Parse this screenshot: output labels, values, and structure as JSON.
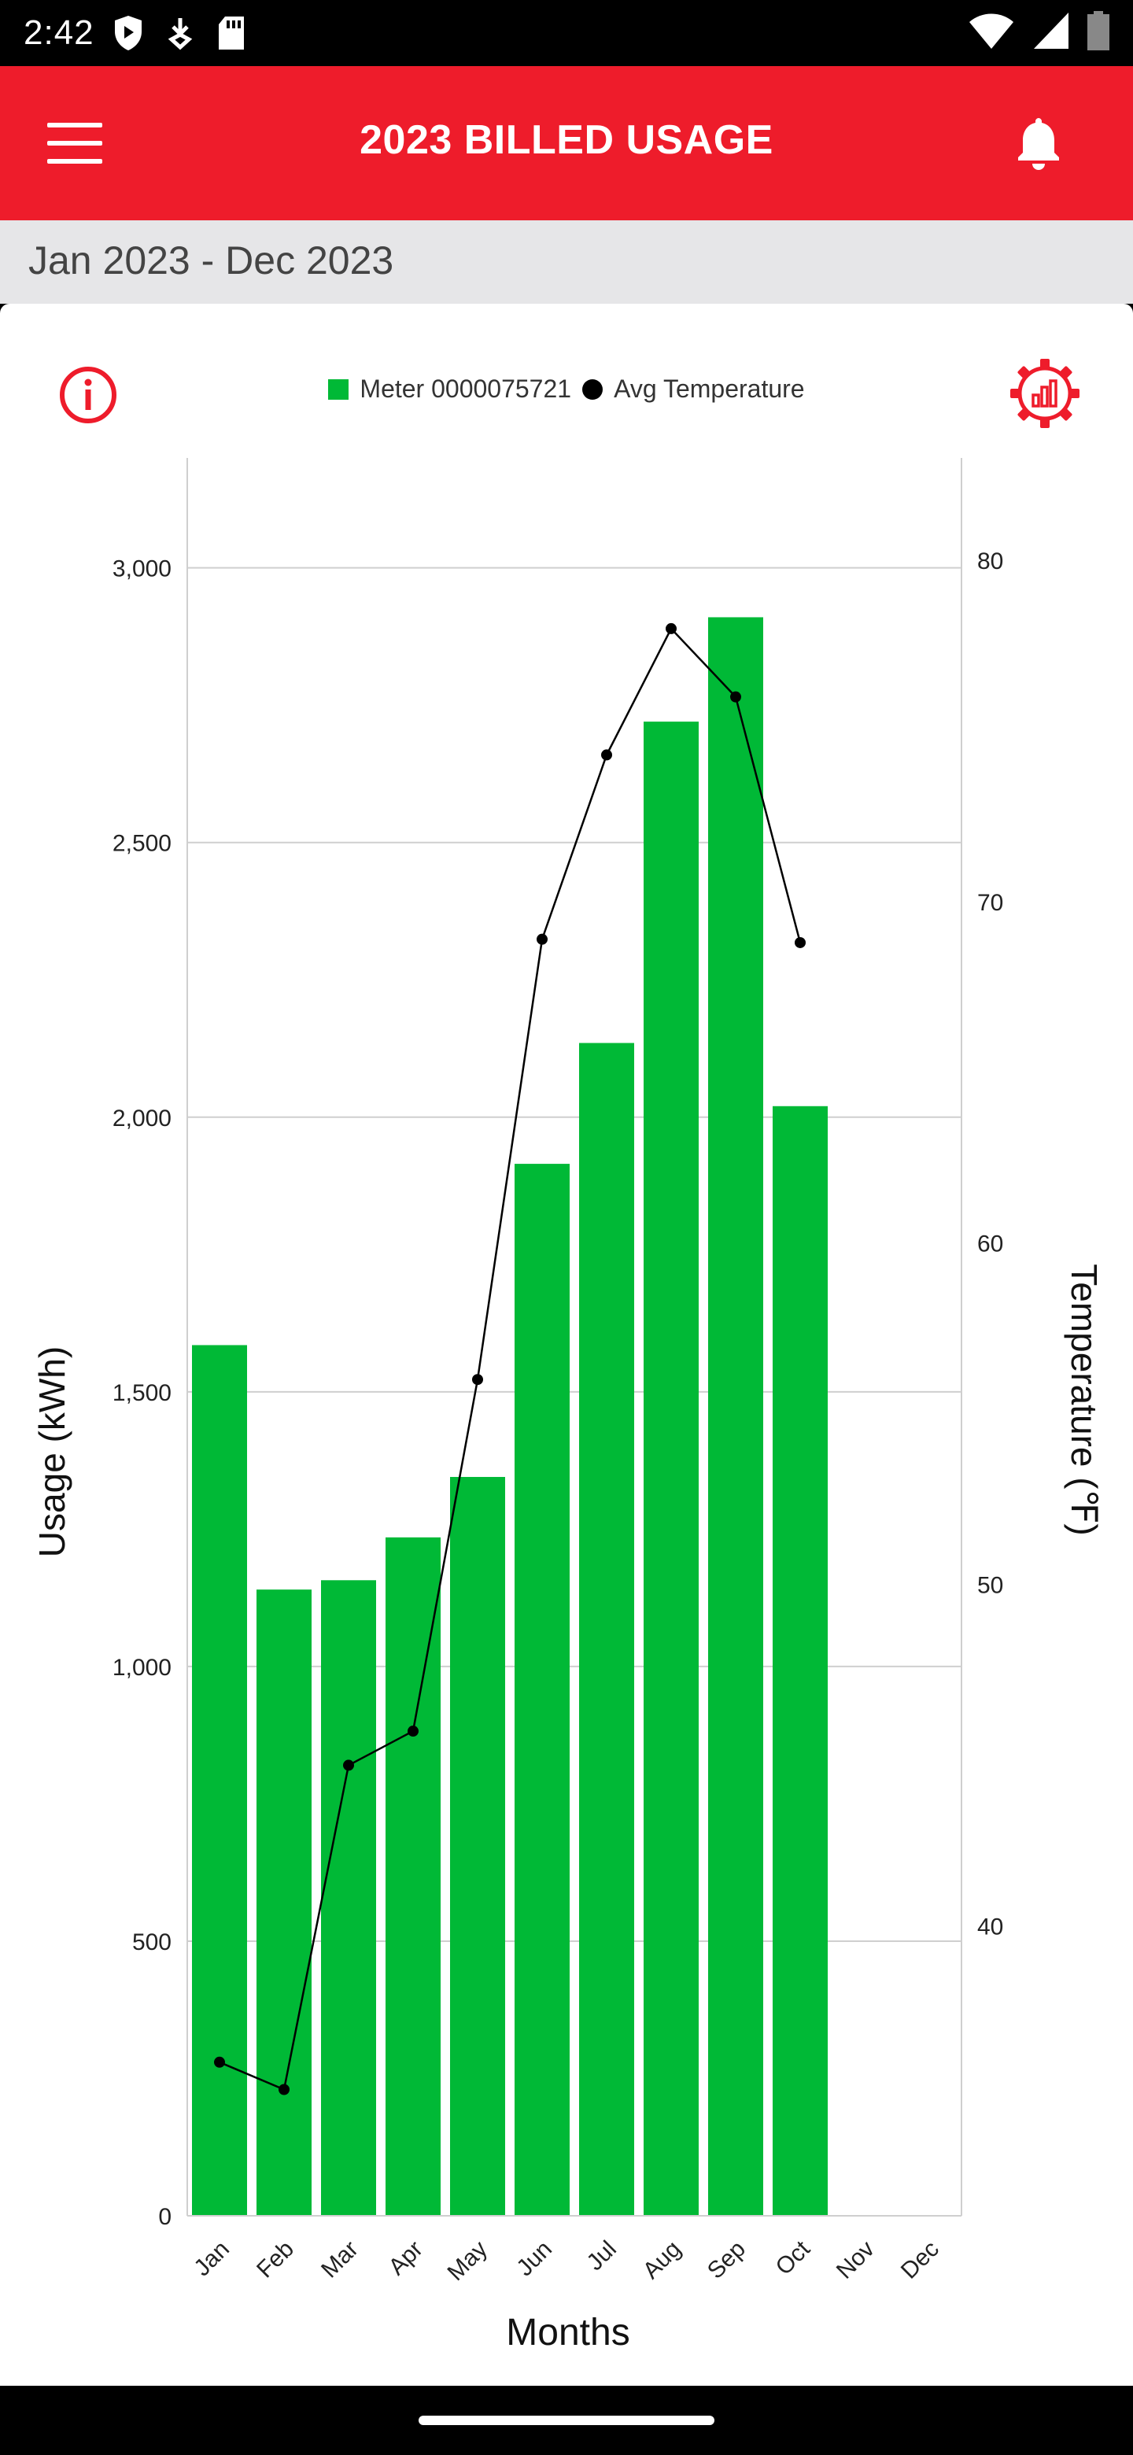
{
  "status_bar": {
    "time": "2:42"
  },
  "app_bar": {
    "title": "2023 BILLED USAGE"
  },
  "date_range": "Jan 2023 - Dec 2023",
  "legend": {
    "usage_label": "Meter 0000075721",
    "temp_label": "Avg Temperature"
  },
  "colors": {
    "brand_red": "#ee1c2b",
    "bar_green": "#00b936",
    "line": "#000000"
  },
  "chart_data": {
    "type": "bar",
    "title": "",
    "xlabel": "Months",
    "ylabel": "Usage (kWh)",
    "y2label": "Temperature (℉)",
    "ylim": [
      0,
      3200
    ],
    "y2lim": [
      31.5,
      83.0
    ],
    "yticks": [
      0,
      500,
      1000,
      1500,
      2000,
      2500,
      3000
    ],
    "ytick_labels": [
      "0",
      "500",
      "1,000",
      "1,500",
      "2,000",
      "2,500",
      "3,000"
    ],
    "y2ticks": [
      40,
      50,
      60,
      70,
      80
    ],
    "y2tick_labels": [
      "40",
      "50",
      "60",
      "70",
      "80"
    ],
    "categories": [
      "Jan",
      "Feb",
      "Mar",
      "Apr",
      "May",
      "Jun",
      "Jul",
      "Aug",
      "Sep",
      "Oct",
      "Nov",
      "Dec"
    ],
    "series": [
      {
        "name": "Meter 0000075721",
        "type": "bar",
        "axis": "left",
        "values": [
          1585,
          1140,
          1157,
          1235,
          1345,
          1915,
          2135,
          2720,
          2910,
          2020,
          null,
          null
        ]
      },
      {
        "name": "Avg Temperature",
        "type": "line",
        "axis": "right",
        "values": [
          36.0,
          35.2,
          44.7,
          45.7,
          56.0,
          68.9,
          74.3,
          78.0,
          76.0,
          68.8,
          null,
          null
        ]
      }
    ]
  }
}
